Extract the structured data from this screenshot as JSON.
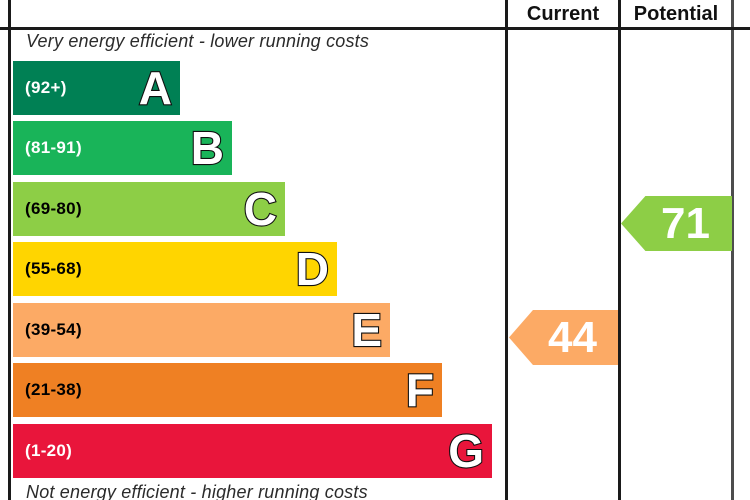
{
  "header": {
    "current": "Current",
    "potential": "Potential"
  },
  "captions": {
    "top": "Very energy efficient - lower running costs",
    "bottom": "Not energy efficient - higher running costs"
  },
  "bands": [
    {
      "letter": "A",
      "range": "(92+)",
      "color": "#008054",
      "range_text_color": "#ffffff"
    },
    {
      "letter": "B",
      "range": "(81-91)",
      "color": "#19b459",
      "range_text_color": "#ffffff"
    },
    {
      "letter": "C",
      "range": "(69-80)",
      "color": "#8dce46",
      "range_text_color": "#000000"
    },
    {
      "letter": "D",
      "range": "(55-68)",
      "color": "#ffd500",
      "range_text_color": "#000000"
    },
    {
      "letter": "E",
      "range": "(39-54)",
      "color": "#fcaa65",
      "range_text_color": "#000000"
    },
    {
      "letter": "F",
      "range": "(21-38)",
      "color": "#ef8023",
      "range_text_color": "#000000"
    },
    {
      "letter": "G",
      "range": "(1-20)",
      "color": "#e9153b",
      "range_text_color": "#ffffff"
    }
  ],
  "ratings": {
    "current": {
      "value": "44",
      "band": "E",
      "color": "#fcaa65"
    },
    "potential": {
      "value": "71",
      "band": "C",
      "color": "#8dce46"
    }
  },
  "chart_data": {
    "type": "bar",
    "title": "Energy efficiency rating (EPC-style band chart)",
    "categories": [
      "A",
      "B",
      "C",
      "D",
      "E",
      "F",
      "G"
    ],
    "band_ranges": [
      "92+",
      "81-91",
      "69-80",
      "55-68",
      "39-54",
      "21-38",
      "1-20"
    ],
    "band_colors": [
      "#008054",
      "#19b459",
      "#8dce46",
      "#ffd500",
      "#fcaa65",
      "#ef8023",
      "#e9153b"
    ],
    "series": [
      {
        "name": "Current",
        "value": 44,
        "band": "E",
        "color": "#fcaa65"
      },
      {
        "name": "Potential",
        "value": 71,
        "band": "C",
        "color": "#8dce46"
      }
    ],
    "xlim": [
      1,
      100
    ],
    "annotations": [
      "Very energy efficient - lower running costs",
      "Not energy efficient - higher running costs"
    ],
    "legend_position": "table-columns-right",
    "grid": false
  }
}
